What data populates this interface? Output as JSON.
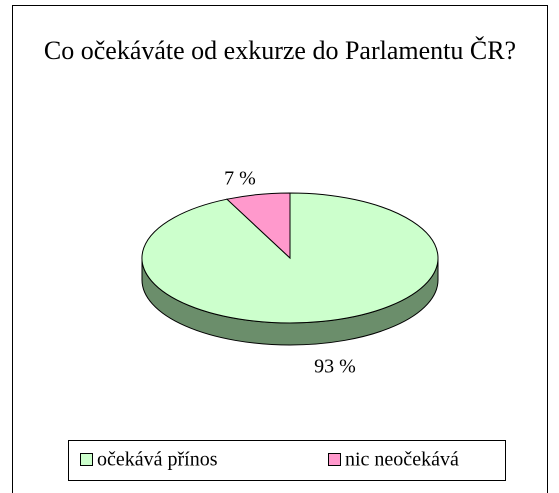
{
  "chart_data": {
    "type": "pie",
    "title": "Co očekáváte od exkurze do Parlamentu ČR?",
    "categories": [
      "očekává přínos",
      "nic neočekává"
    ],
    "values": [
      93,
      7
    ],
    "value_labels": [
      "93 %",
      "7 %"
    ],
    "colors": [
      "#ccffcc",
      "#ff99cc"
    ],
    "side_color": "#6b8e6b",
    "legend": "bottom"
  }
}
